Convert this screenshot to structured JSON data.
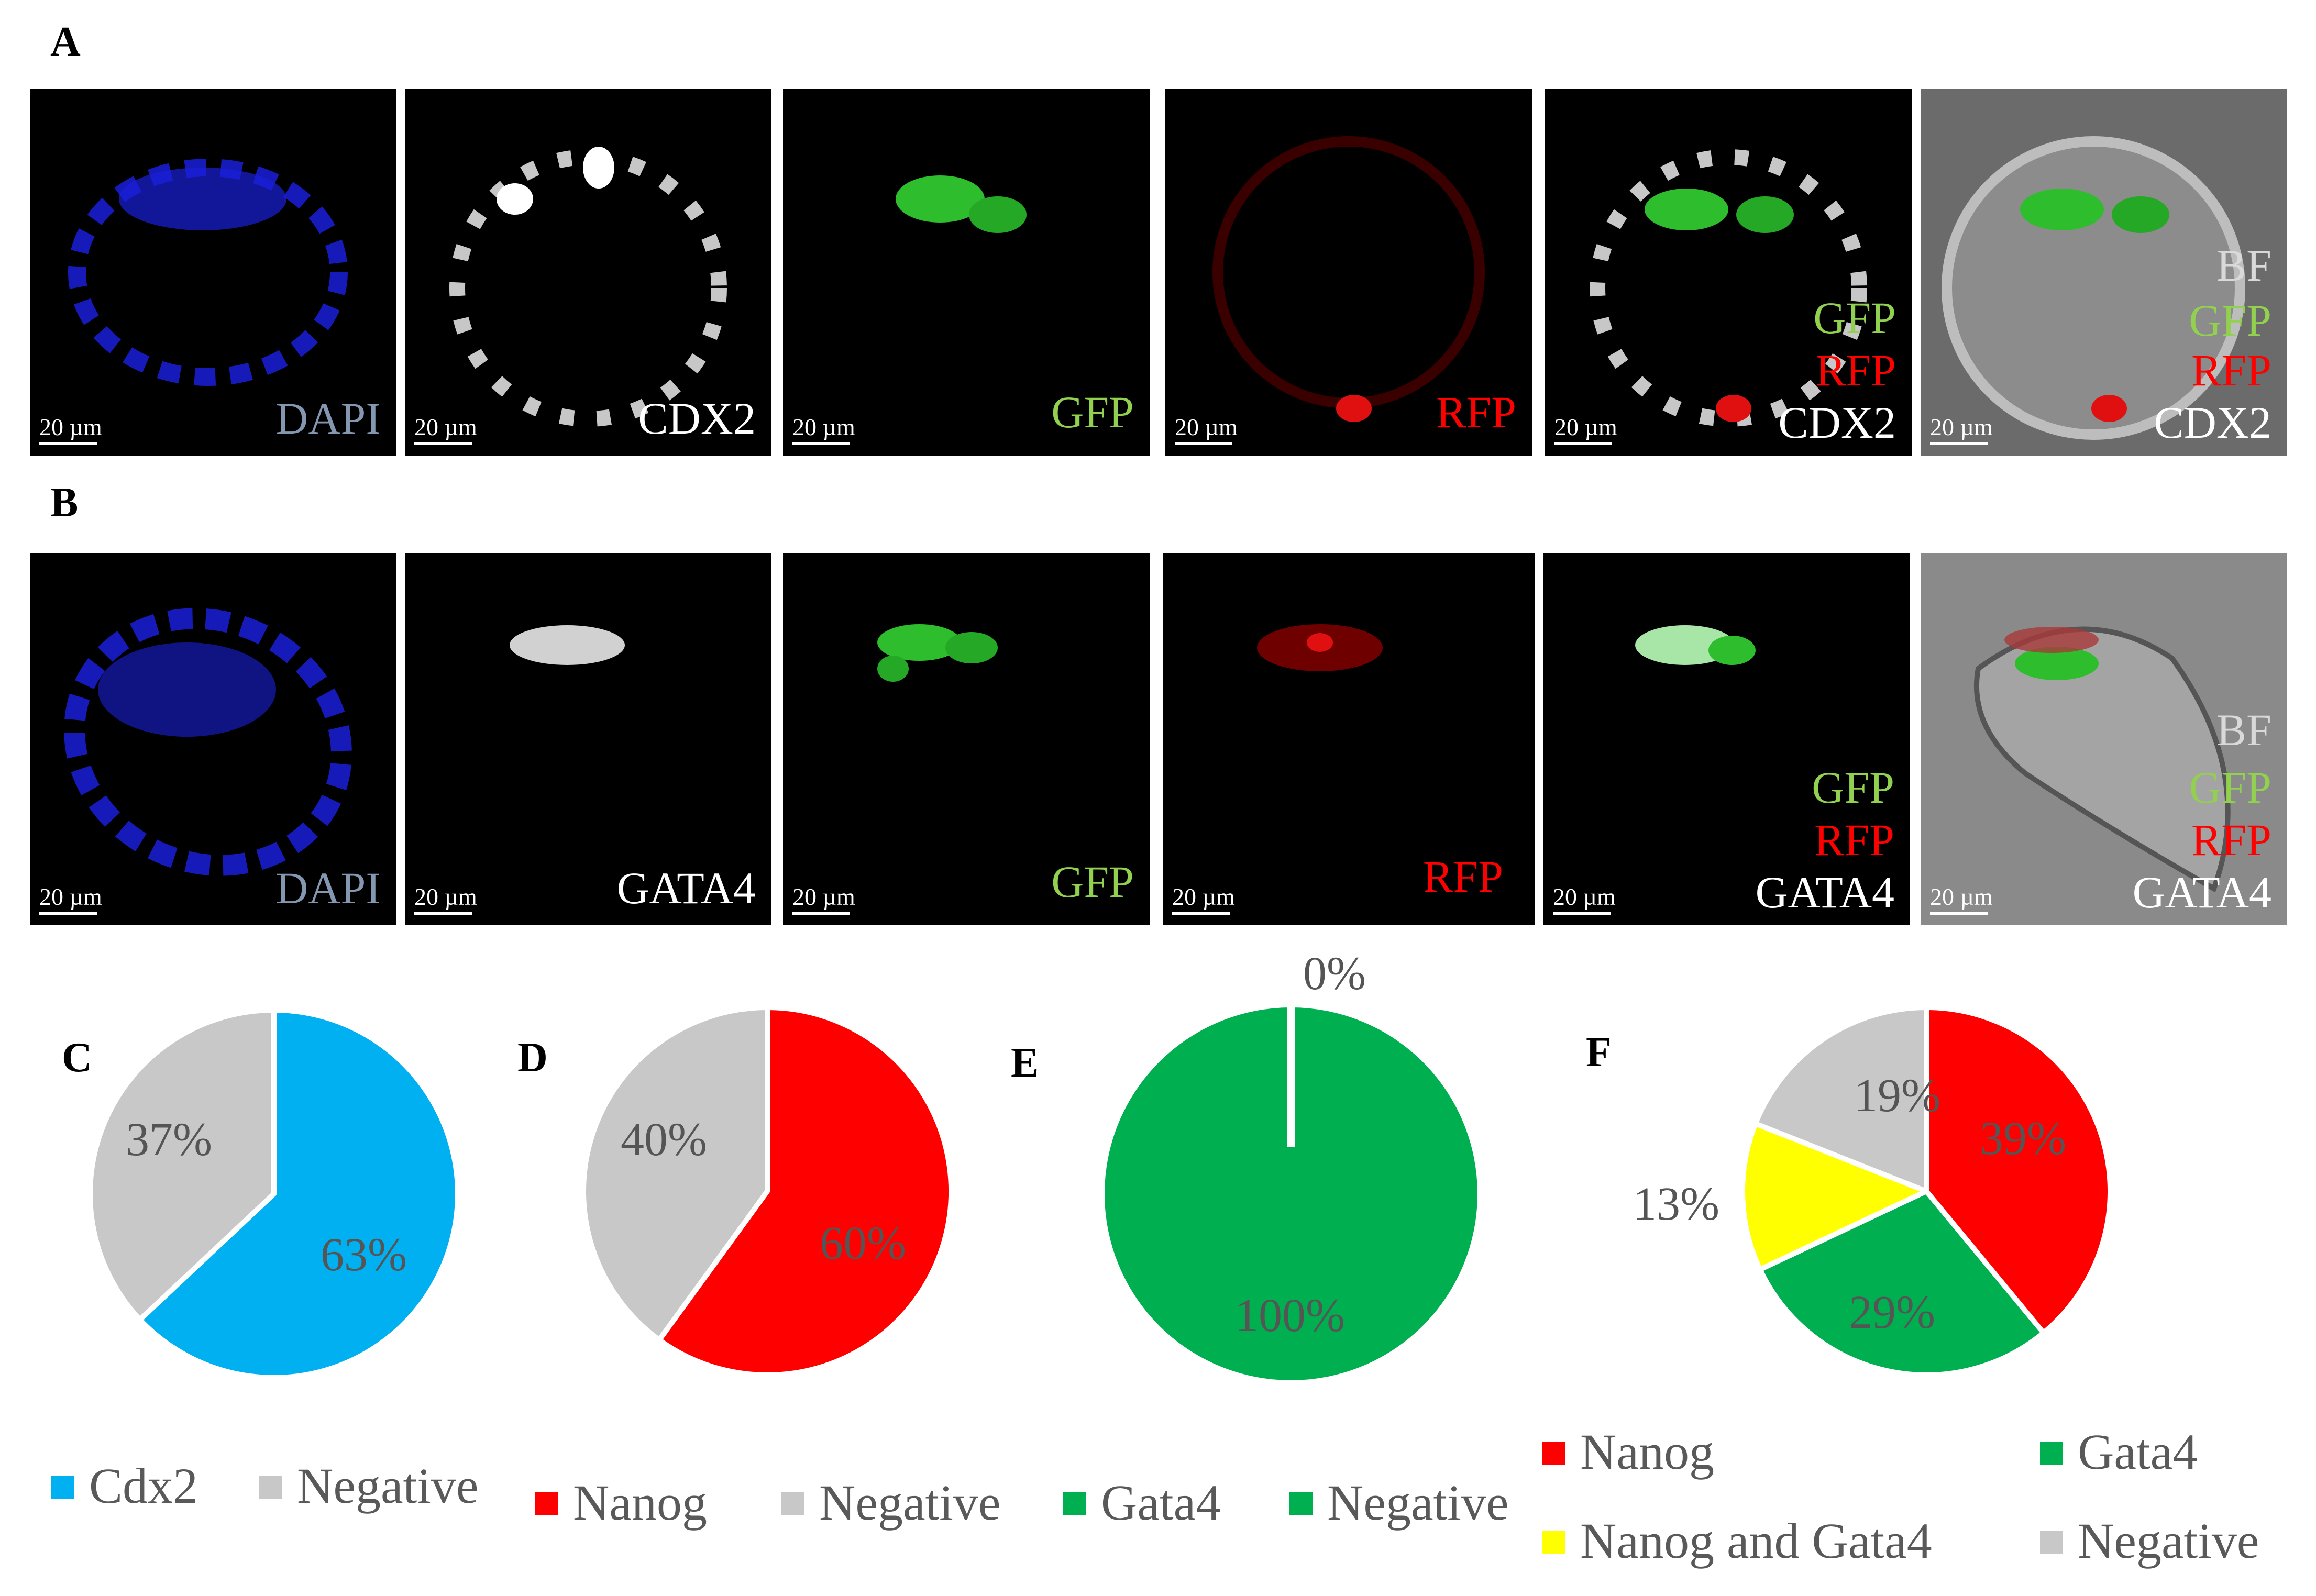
{
  "panel_labels": {
    "a": "A",
    "b": "B",
    "c": "C",
    "d": "D",
    "e": "E",
    "f": "F"
  },
  "scale_bar": "20 µm",
  "row_a": {
    "dapi": "DAPI",
    "cdx2": "CDX2",
    "gfp": "GFP",
    "rfp": "RFP",
    "merge": [
      "GFP",
      "RFP",
      "CDX2"
    ],
    "bf": [
      "BF",
      "GFP",
      "RFP",
      "CDX2"
    ]
  },
  "row_b": {
    "dapi": "DAPI",
    "gata4": "GATA4",
    "gfp": "GFP",
    "rfp": "RFP",
    "merge": [
      "GFP",
      "RFP",
      "GATA4"
    ],
    "bf": [
      "BF",
      "GFP",
      "RFP",
      "GATA4"
    ]
  },
  "colors": {
    "cdx2": "#00B0F0",
    "nanog": "#FF0000",
    "gata4": "#00B050",
    "yellow": "#FFFF00",
    "negative": "#C8C8C8",
    "gfp_text": "#92D050",
    "rfp_text": "#FF0000",
    "dapi_text": "#8497B0"
  },
  "chart_data": [
    {
      "type": "pie",
      "panel": "C",
      "labels": [
        "Cdx2",
        "Negative"
      ],
      "values": [
        63,
        37
      ],
      "data_labels": [
        "63%",
        "37%"
      ],
      "colors": [
        "#00B0F0",
        "#C8C8C8"
      ]
    },
    {
      "type": "pie",
      "panel": "D",
      "labels": [
        "Nanog",
        "Negative"
      ],
      "values": [
        60,
        40
      ],
      "data_labels": [
        "60%",
        "40%"
      ],
      "colors": [
        "#FF0000",
        "#C8C8C8"
      ]
    },
    {
      "type": "pie",
      "panel": "E",
      "labels": [
        "Gata4",
        "Negative"
      ],
      "values": [
        100,
        0
      ],
      "data_labels": [
        "100%",
        "0%"
      ],
      "colors": [
        "#00B050",
        "#00B050"
      ]
    },
    {
      "type": "pie",
      "panel": "F",
      "labels": [
        "Nanog",
        "Gata4",
        "Nanog and Gata4",
        "Negative"
      ],
      "values": [
        39,
        29,
        13,
        19
      ],
      "data_labels": [
        "39%",
        "29%",
        "13%",
        "19%"
      ],
      "colors": [
        "#FF0000",
        "#00B050",
        "#FFFF00",
        "#C8C8C8"
      ]
    }
  ]
}
